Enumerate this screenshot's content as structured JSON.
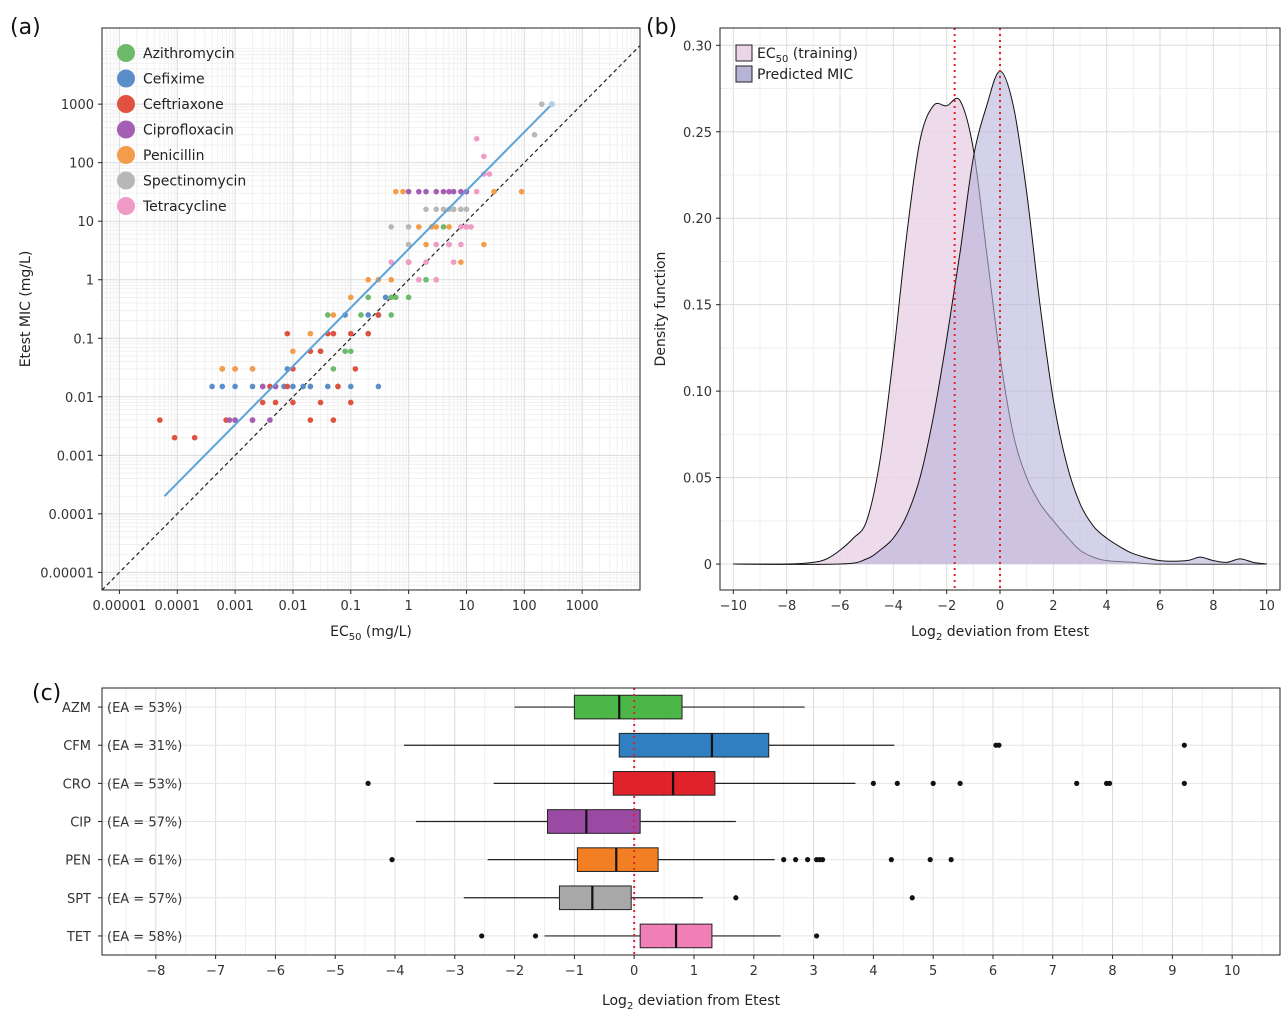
{
  "panels": {
    "a": "(a)",
    "b": "(b)",
    "c": "(c)"
  },
  "chart_data": [
    {
      "panel": "(a)",
      "type": "scatter",
      "xlabel_main": "EC",
      "xlabel_sub": "50",
      "xlabel_tail": " (mg/L)",
      "ylabel": "Etest MIC (mg/L)",
      "x_scale": "log10",
      "y_scale": "log10",
      "xlim": [
        5e-06,
        10000
      ],
      "ylim": [
        5e-06,
        20000
      ],
      "x_ticks": [
        1e-05,
        0.0001,
        0.001,
        0.01,
        0.1,
        1,
        10,
        100,
        1000
      ],
      "x_tick_labels": [
        "0.00001",
        "0.0001",
        "0.001",
        "0.01",
        "0.1",
        "1",
        "10",
        "100",
        "1000"
      ],
      "y_ticks": [
        1e-05,
        0.0001,
        0.001,
        0.01,
        0.1,
        1,
        10,
        100,
        1000
      ],
      "y_tick_labels": [
        "0.00001",
        "0.0001",
        "0.001",
        "0.01",
        "0.1",
        "1",
        "10",
        "100",
        "1000"
      ],
      "grid": true,
      "legend_position": "top-left",
      "identity_line": "dashed",
      "fit_line": {
        "color": "#5ba3d9",
        "from": [
          6e-05,
          0.0002
        ],
        "to": [
          300,
          1000
        ]
      },
      "series": [
        {
          "name": "Azithromycin",
          "color": "#6dbb6a",
          "points": [
            [
              0.02,
              0.015
            ],
            [
              0.05,
              0.03
            ],
            [
              0.08,
              0.06
            ],
            [
              0.1,
              0.06
            ],
            [
              0.2,
              0.12
            ],
            [
              0.3,
              0.25
            ],
            [
              0.5,
              0.25
            ],
            [
              0.5,
              0.5
            ],
            [
              1,
              0.5
            ],
            [
              2,
              1
            ],
            [
              3,
              1
            ],
            [
              0.2,
              0.5
            ],
            [
              1,
              2
            ],
            [
              5,
              4
            ],
            [
              10,
              8
            ],
            [
              0.04,
              0.25
            ],
            [
              0.6,
              0.5
            ],
            [
              4,
              8
            ],
            [
              0.15,
              0.25
            ]
          ]
        },
        {
          "name": "Cefixime",
          "color": "#5b8dc9",
          "points": [
            [
              0.0004,
              0.015
            ],
            [
              0.0006,
              0.015
            ],
            [
              0.001,
              0.015
            ],
            [
              0.002,
              0.015
            ],
            [
              0.003,
              0.015
            ],
            [
              0.005,
              0.015
            ],
            [
              0.01,
              0.015
            ],
            [
              0.02,
              0.015
            ],
            [
              0.04,
              0.015
            ],
            [
              0.06,
              0.015
            ],
            [
              0.1,
              0.015
            ],
            [
              0.3,
              0.015
            ],
            [
              0.002,
              0.03
            ],
            [
              0.008,
              0.03
            ],
            [
              0.03,
              0.06
            ],
            [
              0.05,
              0.12
            ],
            [
              0.08,
              0.25
            ],
            [
              0.2,
              0.25
            ],
            [
              0.4,
              0.5
            ],
            [
              0.3,
              0.25
            ],
            [
              0.007,
              0.015
            ],
            [
              0.015,
              0.015
            ]
          ]
        },
        {
          "name": "Ceftriaxone",
          "color": "#e0523f",
          "points": [
            [
              5e-05,
              0.004
            ],
            [
              9e-05,
              0.002
            ],
            [
              0.0002,
              0.002
            ],
            [
              0.0007,
              0.004
            ],
            [
              0.001,
              0.004
            ],
            [
              0.002,
              0.004
            ],
            [
              0.003,
              0.008
            ],
            [
              0.005,
              0.008
            ],
            [
              0.01,
              0.008
            ],
            [
              0.02,
              0.004
            ],
            [
              0.03,
              0.008
            ],
            [
              0.05,
              0.004
            ],
            [
              0.1,
              0.008
            ],
            [
              0.004,
              0.015
            ],
            [
              0.008,
              0.015
            ],
            [
              0.01,
              0.03
            ],
            [
              0.02,
              0.06
            ],
            [
              0.03,
              0.06
            ],
            [
              0.05,
              0.12
            ],
            [
              0.1,
              0.12
            ],
            [
              0.2,
              0.12
            ],
            [
              0.3,
              0.25
            ],
            [
              0.001,
              0.03
            ],
            [
              0.0006,
              0.03
            ],
            [
              0.008,
              0.12
            ],
            [
              0.06,
              0.015
            ],
            [
              0.12,
              0.03
            ],
            [
              0.04,
              0.12
            ]
          ]
        },
        {
          "name": "Ciprofloxacin",
          "color": "#a45fb5",
          "points": [
            [
              0.0008,
              0.004
            ],
            [
              0.001,
              0.004
            ],
            [
              0.002,
              0.004
            ],
            [
              0.003,
              0.015
            ],
            [
              0.005,
              0.015
            ],
            [
              1,
              32
            ],
            [
              2,
              32
            ],
            [
              3,
              32
            ],
            [
              4,
              32
            ],
            [
              6,
              32
            ],
            [
              8,
              32
            ],
            [
              10,
              32
            ],
            [
              0.004,
              0.004
            ],
            [
              1.5,
              32
            ],
            [
              5,
              32
            ]
          ]
        },
        {
          "name": "Penicillin",
          "color": "#f39d4a",
          "points": [
            [
              0.0006,
              0.03
            ],
            [
              0.001,
              0.03
            ],
            [
              0.002,
              0.03
            ],
            [
              0.01,
              0.06
            ],
            [
              0.02,
              0.12
            ],
            [
              0.05,
              0.25
            ],
            [
              0.1,
              0.5
            ],
            [
              0.3,
              1
            ],
            [
              0.5,
              1
            ],
            [
              1,
              2
            ],
            [
              2,
              4
            ],
            [
              3,
              8
            ],
            [
              5,
              8
            ],
            [
              0.2,
              1
            ],
            [
              0.6,
              32
            ],
            [
              0.8,
              32
            ],
            [
              30,
              32
            ],
            [
              90,
              32
            ],
            [
              20,
              4
            ],
            [
              8,
              2
            ],
            [
              1.5,
              8
            ],
            [
              2.5,
              8
            ],
            [
              6,
              16
            ]
          ]
        },
        {
          "name": "Spectinomycin",
          "color": "#b7b7b7",
          "points": [
            [
              2,
              16
            ],
            [
              3,
              16
            ],
            [
              4,
              16
            ],
            [
              5,
              16
            ],
            [
              6,
              16
            ],
            [
              8,
              16
            ],
            [
              10,
              16
            ],
            [
              0.5,
              8
            ],
            [
              1,
              8
            ],
            [
              1,
              4
            ],
            [
              200,
              1000
            ],
            [
              150,
              300
            ]
          ]
        },
        {
          "name": "Tetracycline",
          "color": "#f09ac6",
          "points": [
            [
              0.5,
              2
            ],
            [
              1,
              2
            ],
            [
              2,
              2
            ],
            [
              3,
              4
            ],
            [
              5,
              4
            ],
            [
              8,
              8
            ],
            [
              10,
              8
            ],
            [
              15,
              32
            ],
            [
              20,
              64
            ],
            [
              25,
              64
            ],
            [
              20,
              128
            ],
            [
              15,
              256
            ],
            [
              12,
              8
            ],
            [
              8,
              4
            ],
            [
              6,
              2
            ],
            [
              3,
              1
            ],
            [
              1.5,
              1
            ]
          ]
        }
      ]
    },
    {
      "panel": "(b)",
      "type": "area",
      "xlabel_main": "Log",
      "xlabel_sub": "2",
      "xlabel_tail": " deviation from Etest",
      "ylabel": "Density function",
      "xlim": [
        -10.5,
        10.5
      ],
      "ylim": [
        -0.015,
        0.31
      ],
      "x_ticks": [
        -10,
        -8,
        -6,
        -4,
        -2,
        0,
        2,
        4,
        6,
        8,
        10
      ],
      "x_tick_labels": [
        "−10",
        "−8",
        "−6",
        "−4",
        "−2",
        "0",
        "2",
        "4",
        "6",
        "8",
        "10"
      ],
      "y_ticks": [
        0,
        0.05,
        0.1,
        0.15,
        0.2,
        0.25,
        0.3
      ],
      "y_tick_labels": [
        "0",
        "0.05",
        "0.10",
        "0.15",
        "0.20",
        "0.25",
        "0.30"
      ],
      "grid": true,
      "legend_position": "top-left",
      "vlines": [
        -1.7,
        0
      ],
      "series": [
        {
          "name_main": "EC",
          "name_sub": "50",
          "name_tail": " (training)",
          "color": "#ead4e8",
          "x": [
            -10,
            -8,
            -7,
            -6.5,
            -6,
            -5.5,
            -5,
            -4.5,
            -4,
            -3.5,
            -3,
            -2.5,
            -2,
            -1.5,
            -1,
            -0.5,
            0,
            0.5,
            1,
            1.5,
            2,
            2.5,
            3,
            3.5,
            4,
            5,
            6,
            10
          ],
          "y": [
            0,
            0,
            0.001,
            0.003,
            0.008,
            0.015,
            0.025,
            0.06,
            0.12,
            0.19,
            0.245,
            0.265,
            0.265,
            0.268,
            0.24,
            0.18,
            0.12,
            0.075,
            0.05,
            0.035,
            0.025,
            0.016,
            0.008,
            0.004,
            0.002,
            0.001,
            0,
            0
          ]
        },
        {
          "name": "Predicted MIC",
          "color": "#b7b4d8",
          "x": [
            -10,
            -6,
            -5,
            -4.5,
            -4,
            -3.5,
            -3,
            -2.5,
            -2,
            -1.5,
            -1,
            -0.5,
            0,
            0.5,
            1,
            1.5,
            2,
            2.5,
            3,
            3.5,
            4,
            4.5,
            5,
            6,
            7,
            7.5,
            8,
            8.5,
            9,
            9.5,
            10
          ],
          "y": [
            0,
            0,
            0.003,
            0.008,
            0.015,
            0.028,
            0.05,
            0.085,
            0.13,
            0.18,
            0.235,
            0.265,
            0.285,
            0.265,
            0.215,
            0.15,
            0.095,
            0.058,
            0.035,
            0.022,
            0.015,
            0.01,
            0.006,
            0.002,
            0.002,
            0.004,
            0.002,
            0.001,
            0.003,
            0.001,
            0
          ]
        }
      ]
    },
    {
      "panel": "(c)",
      "type": "box",
      "xlabel_main": "Log",
      "xlabel_sub": "2",
      "xlabel_tail": " deviation from Etest",
      "xlim": [
        -8.9,
        10.8
      ],
      "x_ticks": [
        -8,
        -7,
        -6,
        -5,
        -4,
        -3,
        -2,
        -1,
        0,
        1,
        2,
        3,
        4,
        5,
        6,
        7,
        8,
        9,
        10
      ],
      "x_tick_labels": [
        "−8",
        "−7",
        "−6",
        "−5",
        "−4",
        "−3",
        "−2",
        "−1",
        "0",
        "1",
        "2",
        "3",
        "4",
        "5",
        "6",
        "7",
        "8",
        "9",
        "10"
      ],
      "grid": true,
      "vline": 0,
      "categories": [
        "AZM",
        "CFM",
        "CRO",
        "CIP",
        "PEN",
        "SPT",
        "TET"
      ],
      "ea_labels": [
        "(EA = 53%)",
        "(EA = 31%)",
        "(EA = 53%)",
        "(EA = 57%)",
        "(EA = 61%)",
        "(EA = 57%)",
        "(EA = 58%)"
      ],
      "colors": [
        "#4cb748",
        "#2f7fc1",
        "#e0222b",
        "#9a4aa3",
        "#f27f23",
        "#a8a8a8",
        "#ef7fb6"
      ],
      "boxes": [
        {
          "min": -2.0,
          "q1": -1.0,
          "median": -0.25,
          "q3": 0.8,
          "max": 2.85,
          "outliers": []
        },
        {
          "min": -3.85,
          "q1": -0.25,
          "median": 1.3,
          "q3": 2.25,
          "max": 4.35,
          "outliers": [
            6.05,
            6.1,
            9.2
          ]
        },
        {
          "min": -2.35,
          "q1": -0.35,
          "median": 0.65,
          "q3": 1.35,
          "max": 3.7,
          "outliers": [
            -4.45,
            4.0,
            4.4,
            5.0,
            5.45,
            7.4,
            7.9,
            7.95,
            9.2
          ]
        },
        {
          "min": -3.65,
          "q1": -1.45,
          "median": -0.8,
          "q3": 0.1,
          "max": 1.7,
          "outliers": []
        },
        {
          "min": -2.45,
          "q1": -0.95,
          "median": -0.3,
          "q3": 0.4,
          "max": 2.35,
          "outliers": [
            -4.05,
            2.5,
            2.7,
            2.9,
            3.05,
            3.1,
            3.15,
            4.3,
            4.95,
            5.3
          ]
        },
        {
          "min": -2.85,
          "q1": -1.25,
          "median": -0.7,
          "q3": -0.05,
          "max": 1.15,
          "outliers": [
            1.7,
            4.65
          ]
        },
        {
          "min": -1.5,
          "q1": 0.1,
          "median": 0.7,
          "q3": 1.3,
          "max": 2.45,
          "outliers": [
            -2.55,
            -1.65,
            3.05
          ]
        }
      ]
    }
  ]
}
